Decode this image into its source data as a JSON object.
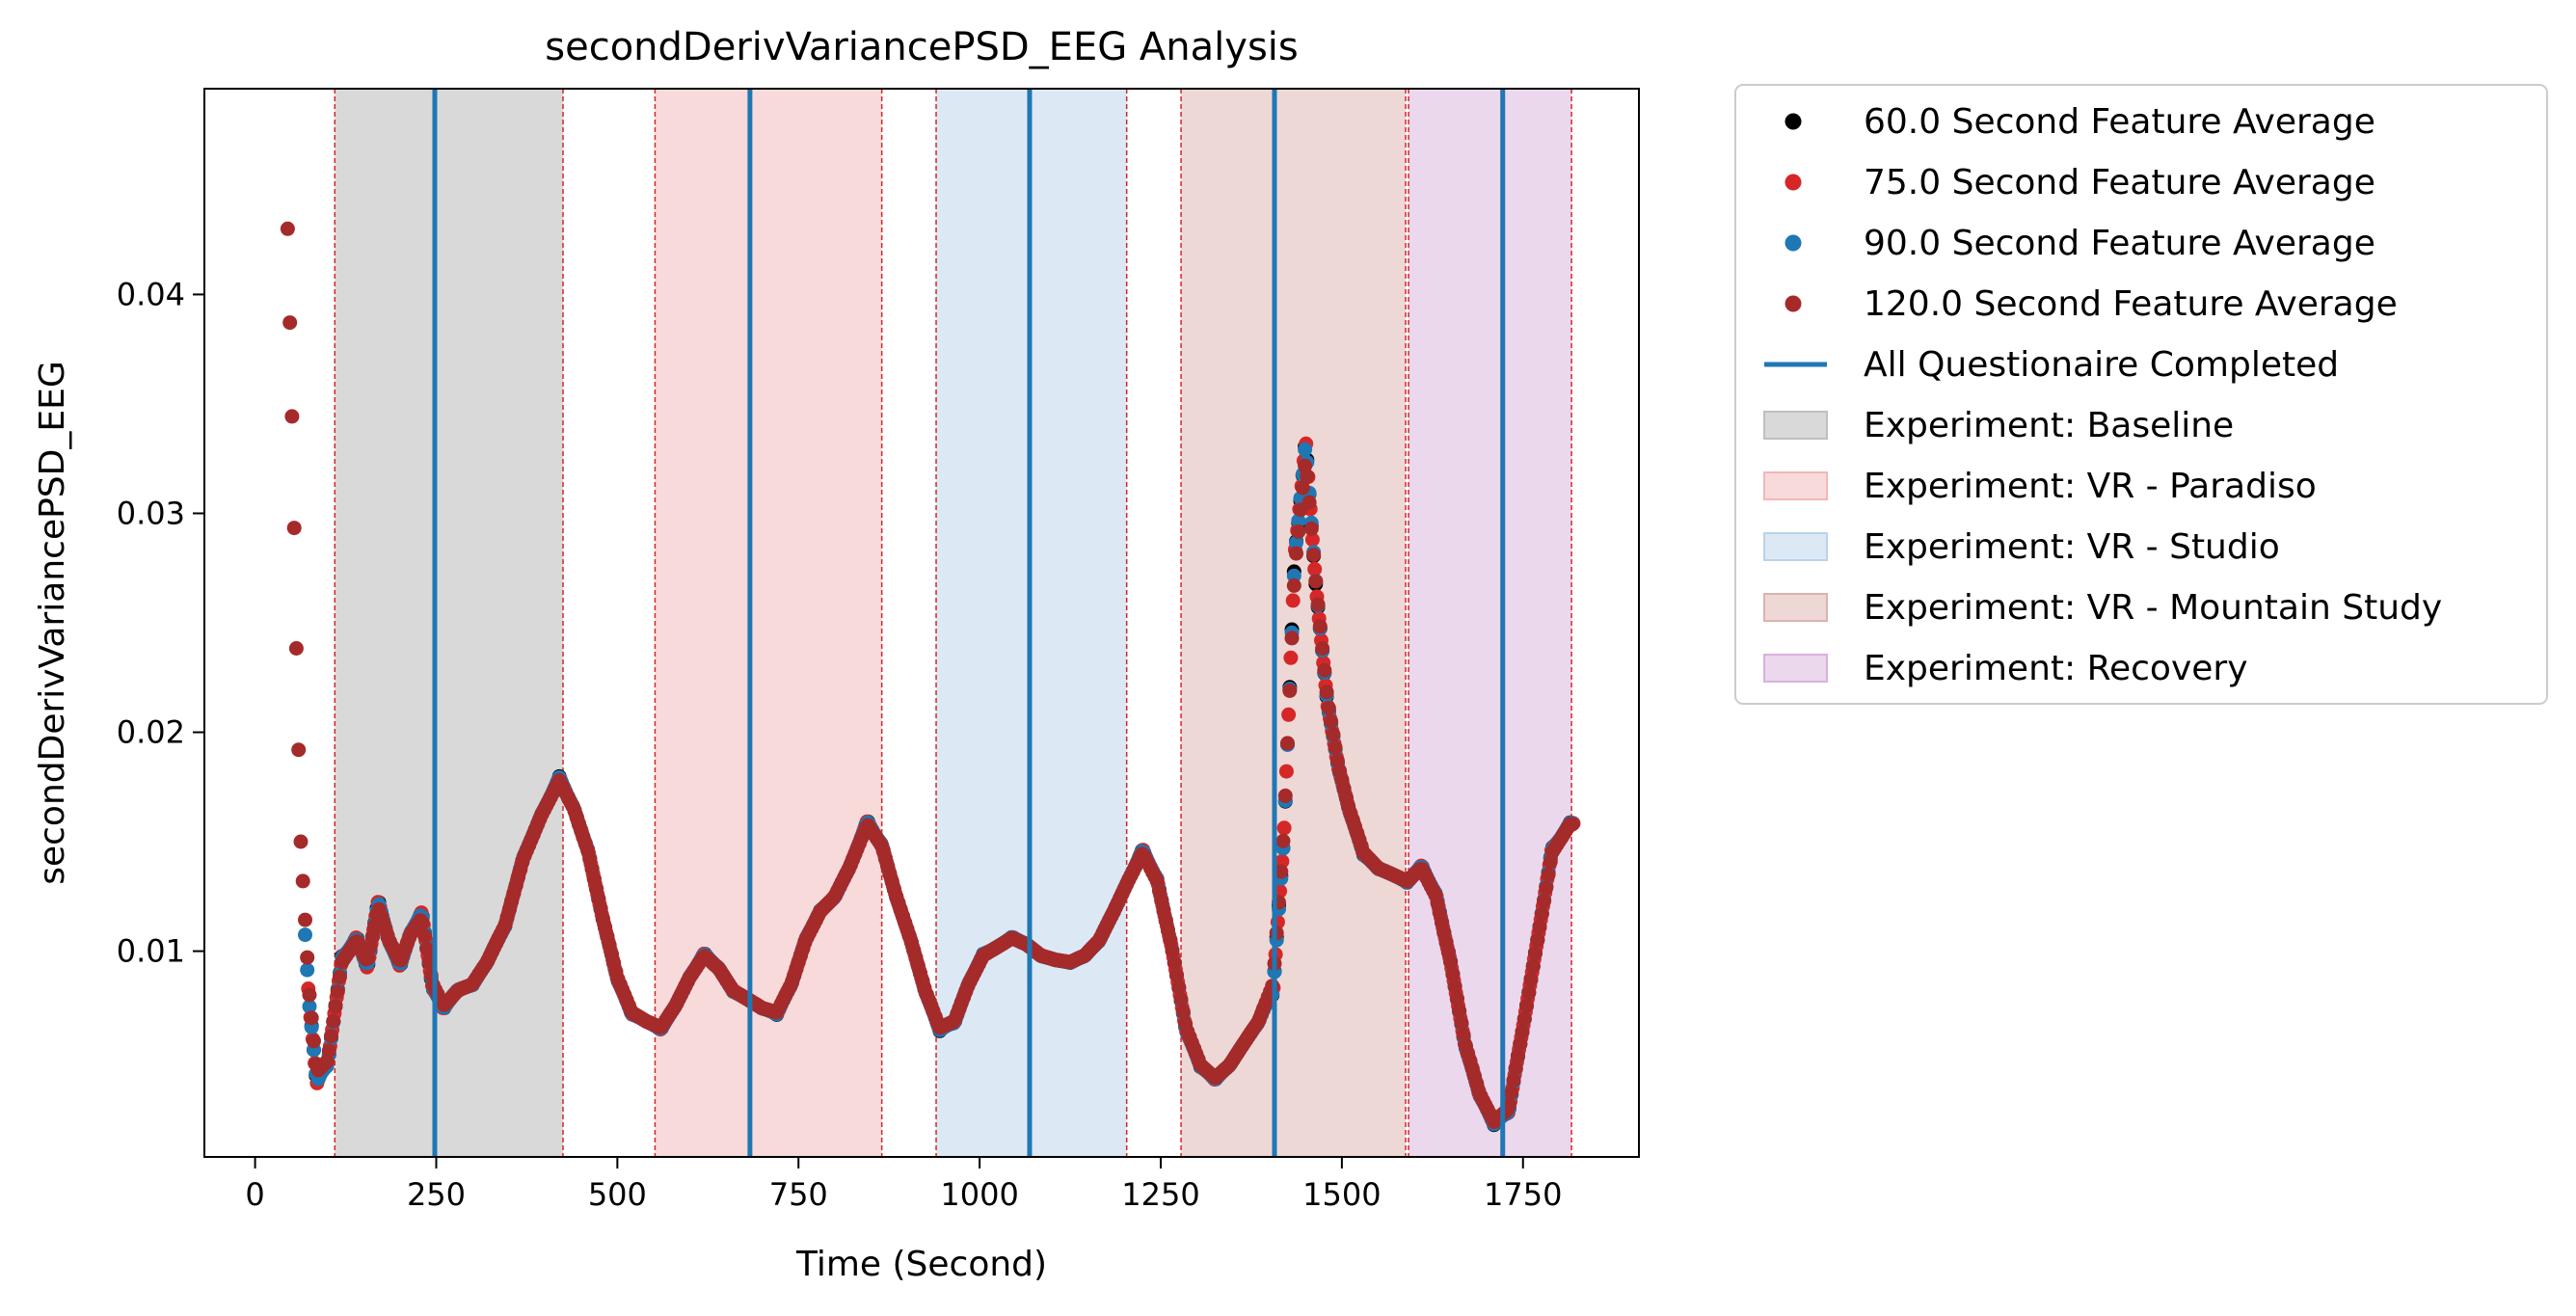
{
  "chart_data": {
    "type": "scatter",
    "title": "secondDerivVariancePSD_EEG Analysis",
    "xlabel": "Time (Second)",
    "ylabel": "secondDerivVariancePSD_EEG",
    "xlim": [
      -70,
      1910
    ],
    "ylim": [
      0.0006,
      0.0494
    ],
    "x_ticks": [
      0,
      250,
      500,
      750,
      1000,
      1250,
      1500,
      1750
    ],
    "x_tick_labels": [
      "0",
      "250",
      "500",
      "750",
      "1000",
      "1250",
      "1500",
      "1750"
    ],
    "y_ticks": [
      0.01,
      0.02,
      0.03,
      0.04
    ],
    "y_tick_labels": [
      "0.01",
      "0.02",
      "0.03",
      "0.04"
    ],
    "grid": false,
    "legend_position": "outside-right",
    "series": [
      {
        "name": "60.0 Second Feature Average",
        "color": "#000000",
        "window": 60
      },
      {
        "name": "75.0 Second Feature Average",
        "color": "#d62728",
        "window": 75
      },
      {
        "name": "90.0 Second Feature Average",
        "color": "#1f77b4",
        "window": 90
      },
      {
        "name": "120.0 Second Feature Average",
        "color": "#a52a2a",
        "window": 120
      }
    ],
    "series_anchor_points": [
      [
        45,
        0.043
      ],
      [
        52,
        0.033
      ],
      [
        58,
        0.022
      ],
      [
        63,
        0.015
      ],
      [
        68,
        0.012
      ],
      [
        75,
        0.008
      ],
      [
        85,
        0.0045
      ],
      [
        100,
        0.005
      ],
      [
        120,
        0.0095
      ],
      [
        140,
        0.0105
      ],
      [
        155,
        0.0095
      ],
      [
        170,
        0.012
      ],
      [
        185,
        0.0105
      ],
      [
        200,
        0.0095
      ],
      [
        215,
        0.0108
      ],
      [
        230,
        0.0115
      ],
      [
        245,
        0.0085
      ],
      [
        260,
        0.0075
      ],
      [
        280,
        0.0082
      ],
      [
        300,
        0.0085
      ],
      [
        320,
        0.0095
      ],
      [
        345,
        0.0112
      ],
      [
        370,
        0.0142
      ],
      [
        395,
        0.0162
      ],
      [
        420,
        0.0178
      ],
      [
        440,
        0.0165
      ],
      [
        460,
        0.0145
      ],
      [
        480,
        0.0115
      ],
      [
        500,
        0.0088
      ],
      [
        520,
        0.0072
      ],
      [
        540,
        0.0068
      ],
      [
        560,
        0.0065
      ],
      [
        580,
        0.0075
      ],
      [
        600,
        0.0088
      ],
      [
        620,
        0.0098
      ],
      [
        640,
        0.0092
      ],
      [
        660,
        0.0082
      ],
      [
        680,
        0.0078
      ],
      [
        700,
        0.0074
      ],
      [
        720,
        0.0072
      ],
      [
        740,
        0.0085
      ],
      [
        760,
        0.0105
      ],
      [
        780,
        0.0118
      ],
      [
        800,
        0.0125
      ],
      [
        820,
        0.0138
      ],
      [
        845,
        0.0158
      ],
      [
        865,
        0.0148
      ],
      [
        885,
        0.0125
      ],
      [
        905,
        0.0105
      ],
      [
        925,
        0.0082
      ],
      [
        945,
        0.0065
      ],
      [
        965,
        0.0068
      ],
      [
        985,
        0.0085
      ],
      [
        1005,
        0.0098
      ],
      [
        1025,
        0.0102
      ],
      [
        1045,
        0.0106
      ],
      [
        1065,
        0.0103
      ],
      [
        1085,
        0.0098
      ],
      [
        1105,
        0.0096
      ],
      [
        1125,
        0.0095
      ],
      [
        1145,
        0.0098
      ],
      [
        1165,
        0.0105
      ],
      [
        1185,
        0.0118
      ],
      [
        1205,
        0.0132
      ],
      [
        1225,
        0.0145
      ],
      [
        1245,
        0.0132
      ],
      [
        1265,
        0.0102
      ],
      [
        1285,
        0.0065
      ],
      [
        1305,
        0.0048
      ],
      [
        1325,
        0.0042
      ],
      [
        1345,
        0.0048
      ],
      [
        1365,
        0.0058
      ],
      [
        1385,
        0.0068
      ],
      [
        1405,
        0.0085
      ],
      [
        1420,
        0.0155
      ],
      [
        1435,
        0.0275
      ],
      [
        1450,
        0.0325
      ],
      [
        1465,
        0.0265
      ],
      [
        1480,
        0.0215
      ],
      [
        1495,
        0.0185
      ],
      [
        1510,
        0.0165
      ],
      [
        1530,
        0.0145
      ],
      [
        1550,
        0.0138
      ],
      [
        1570,
        0.0135
      ],
      [
        1590,
        0.0132
      ],
      [
        1610,
        0.0138
      ],
      [
        1630,
        0.0125
      ],
      [
        1650,
        0.0095
      ],
      [
        1670,
        0.0058
      ],
      [
        1690,
        0.0035
      ],
      [
        1710,
        0.0022
      ],
      [
        1730,
        0.0028
      ],
      [
        1750,
        0.0065
      ],
      [
        1770,
        0.0105
      ],
      [
        1790,
        0.0145
      ],
      [
        1815,
        0.0158
      ]
    ],
    "shaded_regions": [
      {
        "label": "Experiment: Baseline",
        "start": 110,
        "end": 425,
        "color": "#bfbfbf",
        "opacity": 0.6
      },
      {
        "label": "Experiment: VR - Paradiso",
        "start": 552,
        "end": 865,
        "color": "#f4b6b8",
        "opacity": 0.5
      },
      {
        "label": "Experiment: VR - Studio",
        "start": 940,
        "end": 1203,
        "color": "#b9d3ea",
        "opacity": 0.5
      },
      {
        "label": "Experiment: VR - Mountain Study",
        "start": 1278,
        "end": 1588,
        "color": "#ddb1ae",
        "opacity": 0.5
      },
      {
        "label": "Experiment: Recovery",
        "start": 1592,
        "end": 1817,
        "color": "#d7b1dc",
        "opacity": 0.5
      }
    ],
    "region_boundaries": [
      110,
      425,
      552,
      865,
      940,
      1203,
      1278,
      1588,
      1592,
      1817
    ],
    "questionnaire_lines": {
      "label": "All Questionaire Completed",
      "color": "#1f77b4",
      "x": [
        248,
        683,
        1069,
        1407,
        1722
      ]
    }
  }
}
